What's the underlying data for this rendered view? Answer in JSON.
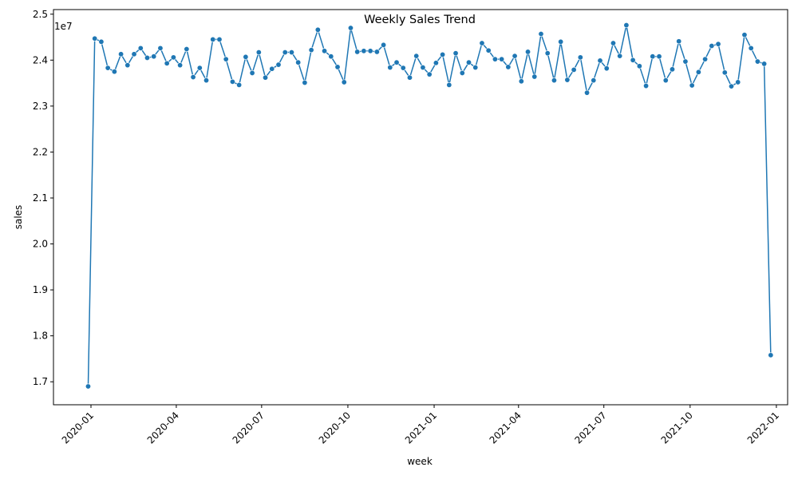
{
  "chart_data": {
    "type": "line",
    "title": "Weekly Sales Trend",
    "xlabel": "week",
    "ylabel": "sales",
    "y_offset_text": "1e7",
    "y_scale_factor": 10000000,
    "grid": false,
    "legend": "none",
    "marker": "circle",
    "color": "#1f77b4",
    "xlim": [
      "2019-11-22",
      "2022-01-13"
    ],
    "ylim": [
      1.65,
      2.51
    ],
    "x_ticks": [
      {
        "date": "2020-01-01",
        "label": "2020-01"
      },
      {
        "date": "2020-04-01",
        "label": "2020-04"
      },
      {
        "date": "2020-07-01",
        "label": "2020-07"
      },
      {
        "date": "2020-10-01",
        "label": "2020-10"
      },
      {
        "date": "2021-01-01",
        "label": "2021-01"
      },
      {
        "date": "2021-04-01",
        "label": "2021-04"
      },
      {
        "date": "2021-07-01",
        "label": "2021-07"
      },
      {
        "date": "2021-10-01",
        "label": "2021-10"
      },
      {
        "date": "2022-01-01",
        "label": "2022-01"
      }
    ],
    "y_ticks": [
      1.7,
      1.8,
      1.9,
      2.0,
      2.1,
      2.2,
      2.3,
      2.4,
      2.5
    ],
    "y_tick_labels": [
      "1.7",
      "1.8",
      "1.9",
      "2.0",
      "2.1",
      "2.2",
      "2.3",
      "2.4",
      "2.5"
    ],
    "series": [
      {
        "x_start": "2019-12-29",
        "x_step_days": 7,
        "values": [
          16900000,
          24470000,
          24400000,
          23830000,
          23750000,
          24130000,
          23890000,
          24130000,
          24260000,
          24050000,
          24080000,
          24260000,
          23930000,
          24060000,
          23890000,
          24240000,
          23630000,
          23830000,
          23560000,
          24450000,
          24450000,
          24020000,
          23530000,
          23460000,
          24070000,
          23720000,
          24170000,
          23620000,
          23810000,
          23900000,
          24170000,
          24170000,
          23950000,
          23510000,
          24220000,
          24660000,
          24200000,
          24080000,
          23850000,
          23520000,
          24700000,
          24180000,
          24200000,
          24200000,
          24180000,
          24330000,
          23840000,
          23950000,
          23830000,
          23620000,
          24090000,
          23840000,
          23690000,
          23940000,
          24120000,
          23460000,
          24150000,
          23720000,
          23950000,
          23840000,
          24370000,
          24210000,
          24020000,
          24020000,
          23850000,
          24090000,
          23540000,
          24180000,
          23640000,
          24570000,
          24150000,
          23560000,
          24400000,
          23570000,
          23790000,
          24060000,
          23290000,
          23560000,
          23990000,
          23820000,
          24370000,
          24090000,
          24760000,
          24000000,
          23870000,
          23440000,
          24080000,
          24080000,
          23560000,
          23800000,
          24410000,
          23970000,
          23450000,
          23740000,
          24020000,
          24310000,
          24350000,
          23730000,
          23430000,
          23520000,
          24550000,
          24260000,
          23970000,
          23920000,
          17580000
        ]
      }
    ]
  }
}
